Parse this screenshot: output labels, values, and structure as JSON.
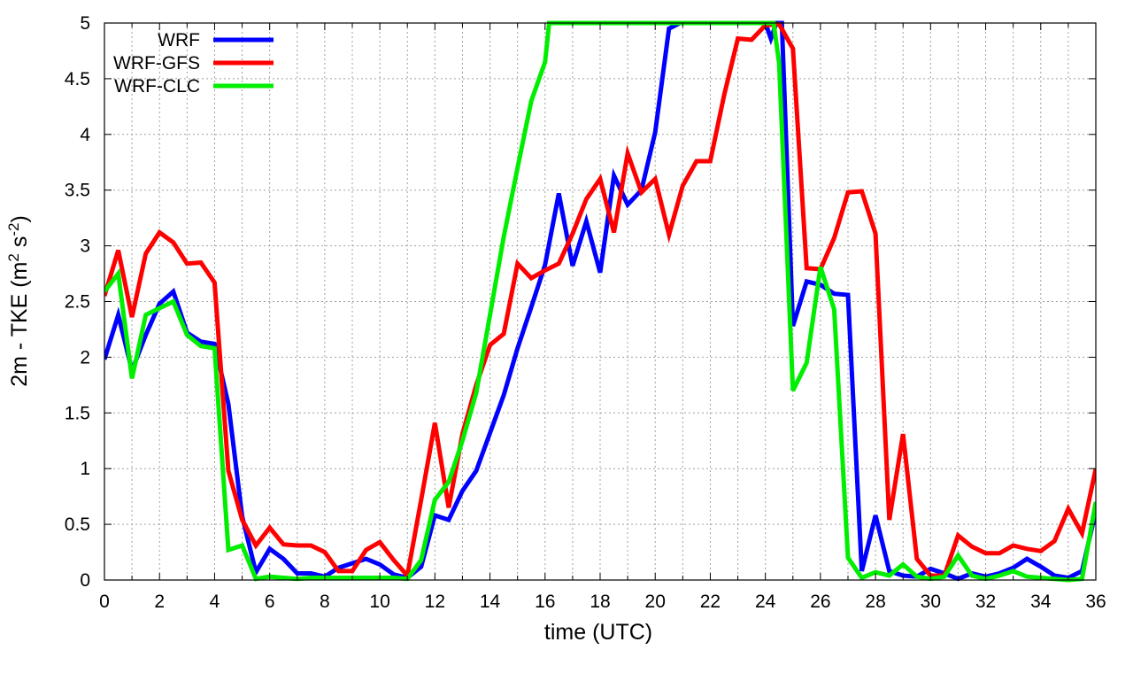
{
  "chart_data": {
    "type": "line",
    "xlabel": "time (UTC)",
    "ylabel_main": "2m - TKE (m",
    "ylabel_sup1": "2",
    "ylabel_mid": " s",
    "ylabel_sup2": "-2",
    "ylabel_end": ")",
    "xlim": [
      0,
      36
    ],
    "ylim": [
      0,
      5
    ],
    "xticks": [
      0,
      2,
      4,
      6,
      8,
      10,
      12,
      14,
      16,
      18,
      20,
      22,
      24,
      26,
      28,
      30,
      32,
      34,
      36
    ],
    "yticks": [
      0,
      0.5,
      1,
      1.5,
      2,
      2.5,
      3,
      3.5,
      4,
      4.5,
      5
    ],
    "ytick_labels": [
      "0",
      "0.5",
      "1",
      "1.5",
      "2",
      "2.5",
      "3",
      "3.5",
      "4",
      "4.5",
      "5"
    ],
    "grid": true,
    "legend_position": "top-left",
    "series": [
      {
        "name": "WRF",
        "color": "#0000ff",
        "points": [
          [
            0,
            1.98
          ],
          [
            0.5,
            2.38
          ],
          [
            1,
            1.88
          ],
          [
            1.5,
            2.2
          ],
          [
            2,
            2.48
          ],
          [
            2.5,
            2.59
          ],
          [
            3,
            2.22
          ],
          [
            3.5,
            2.14
          ],
          [
            4,
            2.12
          ],
          [
            4.5,
            1.58
          ],
          [
            5,
            0.57
          ],
          [
            5.5,
            0.07
          ],
          [
            6,
            0.28
          ],
          [
            6.5,
            0.19
          ],
          [
            7,
            0.06
          ],
          [
            7.5,
            0.06
          ],
          [
            8,
            0.03
          ],
          [
            8.5,
            0.11
          ],
          [
            9,
            0.15
          ],
          [
            9.5,
            0.19
          ],
          [
            10,
            0.14
          ],
          [
            10.5,
            0.05
          ],
          [
            11,
            0.02
          ],
          [
            11.5,
            0.12
          ],
          [
            12,
            0.58
          ],
          [
            12.5,
            0.54
          ],
          [
            13,
            0.8
          ],
          [
            13.5,
            0.98
          ],
          [
            14,
            1.32
          ],
          [
            14.5,
            1.66
          ],
          [
            15,
            2.08
          ],
          [
            15.5,
            2.45
          ],
          [
            16,
            2.83
          ],
          [
            16.5,
            3.47
          ],
          [
            17,
            2.82
          ],
          [
            17.5,
            3.22
          ],
          [
            18,
            2.76
          ],
          [
            18.5,
            3.63
          ],
          [
            19,
            3.37
          ],
          [
            19.5,
            3.5
          ],
          [
            20,
            4.02
          ],
          [
            20.5,
            4.95
          ],
          [
            20.9,
            5.0
          ],
          [
            24,
            5.0
          ],
          [
            24.2,
            4.86
          ],
          [
            24.4,
            5.0
          ],
          [
            24.6,
            5.0
          ],
          [
            25,
            2.28
          ],
          [
            25.5,
            2.68
          ],
          [
            26,
            2.65
          ],
          [
            26.5,
            2.57
          ],
          [
            27,
            2.56
          ],
          [
            27.5,
            0.08
          ],
          [
            28,
            0.58
          ],
          [
            28.5,
            0.08
          ],
          [
            29,
            0.04
          ],
          [
            29.5,
            0.03
          ],
          [
            30,
            0.1
          ],
          [
            30.5,
            0.06
          ],
          [
            31,
            0.01
          ],
          [
            31.5,
            0.06
          ],
          [
            32,
            0.03
          ],
          [
            32.5,
            0.06
          ],
          [
            33,
            0.11
          ],
          [
            33.5,
            0.19
          ],
          [
            34,
            0.12
          ],
          [
            34.5,
            0.04
          ],
          [
            35,
            0.02
          ],
          [
            35.5,
            0.08
          ],
          [
            36,
            0.62
          ]
        ]
      },
      {
        "name": "WRF-GFS",
        "color": "#ff0000",
        "points": [
          [
            0,
            2.55
          ],
          [
            0.5,
            2.96
          ],
          [
            1,
            2.36
          ],
          [
            1.5,
            2.93
          ],
          [
            2,
            3.12
          ],
          [
            2.5,
            3.03
          ],
          [
            3,
            2.84
          ],
          [
            3.5,
            2.85
          ],
          [
            4,
            2.67
          ],
          [
            4.5,
            0.98
          ],
          [
            5,
            0.54
          ],
          [
            5.5,
            0.31
          ],
          [
            6,
            0.47
          ],
          [
            6.5,
            0.32
          ],
          [
            7,
            0.31
          ],
          [
            7.5,
            0.31
          ],
          [
            8,
            0.25
          ],
          [
            8.5,
            0.08
          ],
          [
            9,
            0.08
          ],
          [
            9.5,
            0.27
          ],
          [
            10,
            0.34
          ],
          [
            10.5,
            0.18
          ],
          [
            11,
            0.04
          ],
          [
            11.5,
            0.72
          ],
          [
            12,
            1.41
          ],
          [
            12.5,
            0.65
          ],
          [
            13,
            1.31
          ],
          [
            13.5,
            1.75
          ],
          [
            14,
            2.11
          ],
          [
            14.5,
            2.21
          ],
          [
            15,
            2.84
          ],
          [
            15.5,
            2.71
          ],
          [
            16,
            2.78
          ],
          [
            16.5,
            2.84
          ],
          [
            17,
            3.11
          ],
          [
            17.5,
            3.42
          ],
          [
            18,
            3.6
          ],
          [
            18.5,
            3.12
          ],
          [
            19,
            3.83
          ],
          [
            19.5,
            3.48
          ],
          [
            20,
            3.6
          ],
          [
            20.5,
            3.1
          ],
          [
            21,
            3.54
          ],
          [
            21.5,
            3.76
          ],
          [
            22,
            3.76
          ],
          [
            22.5,
            4.35
          ],
          [
            23,
            4.86
          ],
          [
            23.5,
            4.85
          ],
          [
            24,
            4.98
          ],
          [
            24.5,
            4.99
          ],
          [
            25,
            4.77
          ],
          [
            25.5,
            2.8
          ],
          [
            26,
            2.79
          ],
          [
            26.5,
            3.07
          ],
          [
            27,
            3.48
          ],
          [
            27.5,
            3.49
          ],
          [
            28,
            3.11
          ],
          [
            28.5,
            0.54
          ],
          [
            29,
            1.31
          ],
          [
            29.5,
            0.19
          ],
          [
            30,
            0.04
          ],
          [
            30.5,
            0.04
          ],
          [
            31,
            0.4
          ],
          [
            31.5,
            0.3
          ],
          [
            32,
            0.24
          ],
          [
            32.5,
            0.24
          ],
          [
            33,
            0.31
          ],
          [
            33.5,
            0.28
          ],
          [
            34,
            0.26
          ],
          [
            34.5,
            0.35
          ],
          [
            35,
            0.64
          ],
          [
            35.5,
            0.42
          ],
          [
            36,
            1.0
          ]
        ]
      },
      {
        "name": "WRF-CLC",
        "color": "#00ee00",
        "points": [
          [
            0,
            2.59
          ],
          [
            0.5,
            2.75
          ],
          [
            1,
            1.81
          ],
          [
            1.5,
            2.38
          ],
          [
            2,
            2.44
          ],
          [
            2.5,
            2.5
          ],
          [
            3,
            2.2
          ],
          [
            3.5,
            2.1
          ],
          [
            4,
            2.08
          ],
          [
            4.5,
            0.27
          ],
          [
            5,
            0.31
          ],
          [
            5.5,
            0.01
          ],
          [
            6,
            0.03
          ],
          [
            6.5,
            0.02
          ],
          [
            7,
            0.01
          ],
          [
            7.5,
            0.02
          ],
          [
            8,
            0.02
          ],
          [
            8.5,
            0.02
          ],
          [
            9,
            0.02
          ],
          [
            9.5,
            0.02
          ],
          [
            10,
            0.02
          ],
          [
            10.5,
            0.02
          ],
          [
            11,
            0.01
          ],
          [
            11.5,
            0.18
          ],
          [
            12,
            0.72
          ],
          [
            12.5,
            0.88
          ],
          [
            13,
            1.25
          ],
          [
            13.5,
            1.68
          ],
          [
            14,
            2.38
          ],
          [
            14.5,
            3.08
          ],
          [
            15,
            3.7
          ],
          [
            15.5,
            4.3
          ],
          [
            16,
            4.65
          ],
          [
            16.15,
            5.0
          ],
          [
            24.3,
            5.0
          ],
          [
            24.5,
            4.64
          ],
          [
            25,
            1.7
          ],
          [
            25.5,
            1.95
          ],
          [
            26,
            2.81
          ],
          [
            26.5,
            2.43
          ],
          [
            27,
            0.2
          ],
          [
            27.5,
            0.02
          ],
          [
            28,
            0.07
          ],
          [
            28.5,
            0.04
          ],
          [
            29,
            0.14
          ],
          [
            29.5,
            0.03
          ],
          [
            30,
            0.01
          ],
          [
            30.5,
            0.03
          ],
          [
            31,
            0.22
          ],
          [
            31.5,
            0.04
          ],
          [
            32,
            0.01
          ],
          [
            32.5,
            0.04
          ],
          [
            33,
            0.08
          ],
          [
            33.5,
            0.03
          ],
          [
            34,
            0.02
          ],
          [
            34.5,
            0.01
          ],
          [
            35,
            0.0
          ],
          [
            35.5,
            0.01
          ],
          [
            36,
            0.7
          ]
        ]
      }
    ]
  }
}
